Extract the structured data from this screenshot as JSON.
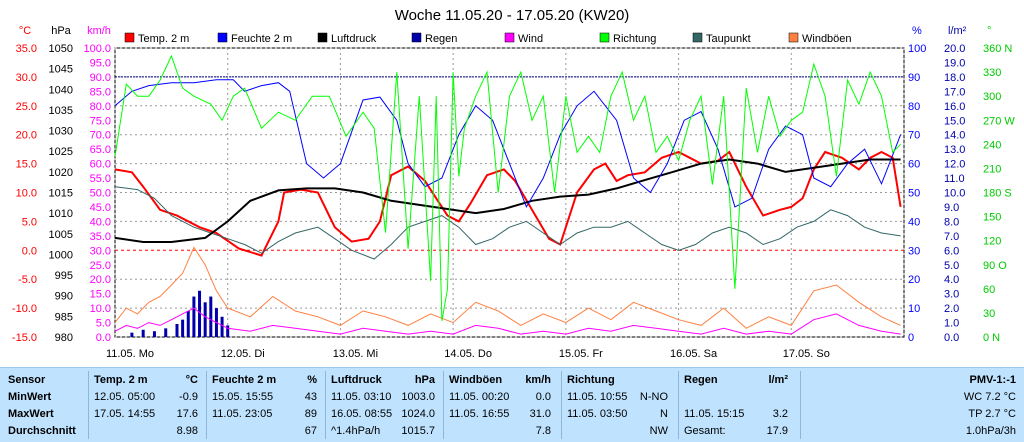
{
  "chart_data": {
    "type": "line",
    "title": "Woche 11.05.20 - 17.05.20 (KW20)",
    "x_ticks": [
      "11.05. Mo",
      "12.05. Di",
      "13.05. Mi",
      "14.05. Do",
      "15.05. Fr",
      "16.05. Sa",
      "17.05. So"
    ],
    "xlim": [
      0,
      7
    ],
    "grid": true,
    "legend_placement": "top",
    "axes": {
      "temp": {
        "unit": "°C",
        "range": [
          -15,
          35
        ],
        "ticks": [
          "35.0",
          "30.0",
          "25.0",
          "20.0",
          "15.0",
          "10.0",
          "5.0",
          "0.0",
          "-5.0",
          "-10.0",
          "-15.0"
        ],
        "color": "#ff0000"
      },
      "pressure": {
        "unit": "hPa",
        "range": [
          980,
          1050
        ],
        "ticks": [
          "1050",
          "1045",
          "1040",
          "1035",
          "1030",
          "1025",
          "1020",
          "1015",
          "1010",
          "1005",
          "1000",
          "995",
          "990",
          "985",
          "980"
        ],
        "color": "#000000"
      },
      "wind": {
        "unit": "km/h",
        "range": [
          0,
          100
        ],
        "ticks": [
          "100.0",
          "95.0",
          "90.0",
          "85.0",
          "80.0",
          "75.0",
          "70.0",
          "65.0",
          "60.0",
          "55.0",
          "50.0",
          "45.0",
          "40.0",
          "35.0",
          "30.0",
          "25.0",
          "20.0",
          "15.0",
          "10.0",
          "5.0",
          "0.0"
        ],
        "color": "#ff00ff"
      },
      "humidity": {
        "unit": "%",
        "range": [
          0,
          100
        ],
        "ticks": [
          "100",
          "90",
          "80",
          "70",
          "60",
          "50",
          "40",
          "30",
          "20",
          "10",
          "0"
        ],
        "color": "#0000ff"
      },
      "rain": {
        "unit": "l/m²",
        "range": [
          0,
          20
        ],
        "ticks": [
          "20.0",
          "19.0",
          "18.0",
          "17.0",
          "16.0",
          "15.0",
          "14.0",
          "13.0",
          "12.0",
          "11.0",
          "10.0",
          "9.0",
          "8.0",
          "7.0",
          "6.0",
          "5.0",
          "4.0",
          "3.0",
          "2.0",
          "1.0",
          "0.0"
        ],
        "color": "#0000aa"
      },
      "direction": {
        "unit": "°",
        "range": [
          0,
          360
        ],
        "ticks": [
          "360 N",
          "330",
          "300",
          "270 W",
          "240",
          "210",
          "180 S",
          "150",
          "120",
          "90 O",
          "60",
          "30",
          "0 N"
        ],
        "color": "#00cc00"
      }
    },
    "legend": [
      {
        "name": "Temp. 2 m",
        "color": "#ff0000"
      },
      {
        "name": "Feuchte 2 m",
        "color": "#0000ff"
      },
      {
        "name": "Luftdruck",
        "color": "#000000"
      },
      {
        "name": "Regen",
        "color": "#0000aa"
      },
      {
        "name": "Wind",
        "color": "#ff00ff"
      },
      {
        "name": "Richtung",
        "color": "#00ff00"
      },
      {
        "name": "Taupunkt",
        "color": "#336666"
      },
      {
        "name": "Windböen",
        "color": "#ff8040"
      }
    ],
    "series": [
      {
        "name": "Temp. 2 m",
        "axis": "temp",
        "color": "#ff0000",
        "width": 2,
        "x": [
          0,
          0.15,
          0.25,
          0.4,
          0.55,
          0.75,
          0.9,
          1.1,
          1.3,
          1.45,
          1.5,
          1.65,
          1.8,
          1.95,
          2.1,
          2.25,
          2.35,
          2.45,
          2.6,
          2.75,
          2.85,
          2.95,
          3.05,
          3.15,
          3.3,
          3.45,
          3.55,
          3.7,
          3.85,
          3.95,
          4.1,
          4.25,
          4.35,
          4.45,
          4.55,
          4.7,
          4.85,
          5.0,
          5.1,
          5.2,
          5.35,
          5.45,
          5.6,
          5.75,
          5.9,
          6.0,
          6.1,
          6.2,
          6.3,
          6.45,
          6.6,
          6.7,
          6.8,
          6.9,
          6.97
        ],
        "y": [
          14,
          13.5,
          11,
          7,
          6,
          4,
          3,
          0.3,
          -0.9,
          5,
          10,
          10.5,
          10,
          4,
          1.5,
          2,
          5,
          13,
          14.5,
          12,
          9,
          6,
          5,
          8,
          13,
          14,
          12,
          7,
          2,
          1,
          10,
          14,
          15,
          12,
          13,
          13.5,
          16,
          17,
          16,
          15,
          15.5,
          17,
          11,
          6,
          7,
          7.5,
          9,
          14,
          17,
          16,
          14,
          16,
          17,
          16,
          7.5
        ]
      },
      {
        "name": "Taupunkt",
        "axis": "temp",
        "color": "#336666",
        "width": 1,
        "x": [
          0,
          0.2,
          0.35,
          0.5,
          0.7,
          0.85,
          1.0,
          1.15,
          1.3,
          1.45,
          1.6,
          1.8,
          1.95,
          2.1,
          2.3,
          2.45,
          2.6,
          2.75,
          2.9,
          3.05,
          3.2,
          3.35,
          3.5,
          3.65,
          3.8,
          3.95,
          4.1,
          4.25,
          4.4,
          4.55,
          4.7,
          4.85,
          5.0,
          5.15,
          5.3,
          5.45,
          5.6,
          5.75,
          5.9,
          6.05,
          6.2,
          6.35,
          6.5,
          6.65,
          6.8,
          6.97
        ],
        "y": [
          11,
          10.5,
          9,
          6,
          4,
          3,
          2,
          1,
          -0.5,
          1.5,
          3,
          4,
          2,
          0,
          -1.5,
          1,
          4,
          5,
          6,
          4,
          1,
          2,
          4,
          5,
          3,
          1,
          3,
          4,
          4,
          5,
          3,
          1,
          0,
          1,
          3,
          4,
          3,
          1,
          2,
          4,
          5,
          7,
          6,
          4,
          3,
          2.5
        ]
      },
      {
        "name": "Luftdruck",
        "axis": "pressure",
        "color": "#000000",
        "width": 2,
        "x": [
          0,
          0.25,
          0.5,
          0.8,
          1.0,
          1.2,
          1.45,
          1.7,
          1.95,
          2.2,
          2.45,
          2.7,
          2.95,
          3.2,
          3.45,
          3.7,
          3.95,
          4.2,
          4.45,
          4.7,
          4.95,
          5.2,
          5.45,
          5.7,
          5.95,
          6.2,
          6.45,
          6.7,
          6.97
        ],
        "y": [
          1004,
          1003,
          1003,
          1004,
          1008,
          1013,
          1015.5,
          1016,
          1016,
          1015,
          1013,
          1012,
          1011,
          1010,
          1011,
          1013,
          1014,
          1014.5,
          1016,
          1018,
          1020,
          1022,
          1023,
          1022,
          1020,
          1021,
          1022,
          1023,
          1023
        ]
      },
      {
        "name": "Feuchte 2 m",
        "axis": "humidity",
        "color": "#0000ff",
        "width": 1,
        "x": [
          0,
          0.15,
          0.3,
          0.5,
          0.7,
          0.9,
          1.05,
          1.15,
          1.3,
          1.45,
          1.55,
          1.7,
          1.85,
          2.0,
          2.2,
          2.35,
          2.5,
          2.6,
          2.75,
          2.9,
          3.05,
          3.2,
          3.35,
          3.5,
          3.65,
          3.8,
          3.95,
          4.1,
          4.25,
          4.45,
          4.6,
          4.75,
          4.9,
          5.05,
          5.2,
          5.35,
          5.5,
          5.65,
          5.8,
          5.95,
          6.1,
          6.2,
          6.35,
          6.5,
          6.65,
          6.8,
          6.97
        ],
        "y": [
          80,
          85,
          87,
          88,
          88,
          89,
          89,
          85,
          87,
          88,
          85,
          60,
          55,
          60,
          82,
          83,
          75,
          60,
          52,
          55,
          70,
          80,
          75,
          60,
          45,
          55,
          70,
          80,
          85,
          75,
          55,
          50,
          60,
          75,
          78,
          65,
          45,
          48,
          65,
          73,
          70,
          55,
          52,
          60,
          65,
          53,
          70
        ]
      },
      {
        "name": "Wind",
        "axis": "wind",
        "color": "#ff00ff",
        "width": 1,
        "x": [
          0,
          0.1,
          0.2,
          0.3,
          0.4,
          0.5,
          0.6,
          0.7,
          0.8,
          0.9,
          1.0,
          1.2,
          1.4,
          1.6,
          1.8,
          2.0,
          2.2,
          2.4,
          2.6,
          2.8,
          3.0,
          3.2,
          3.4,
          3.6,
          3.8,
          4.0,
          4.2,
          4.4,
          4.6,
          4.8,
          5.0,
          5.2,
          5.4,
          5.6,
          5.8,
          6.0,
          6.2,
          6.4,
          6.6,
          6.8,
          6.97
        ],
        "y": [
          2,
          4,
          3,
          5,
          4,
          6,
          8,
          10,
          7,
          5,
          3,
          2,
          4,
          3,
          2,
          1,
          3,
          2,
          1,
          2,
          1,
          4,
          3,
          1,
          2,
          1,
          3,
          2,
          4,
          3,
          2,
          1,
          3,
          1,
          2,
          1,
          6,
          8,
          4,
          2,
          1
        ]
      },
      {
        "name": "Windböen",
        "axis": "wind",
        "color": "#ff8040",
        "width": 1,
        "x": [
          0,
          0.1,
          0.2,
          0.3,
          0.4,
          0.5,
          0.6,
          0.7,
          0.8,
          0.9,
          1.0,
          1.2,
          1.4,
          1.6,
          1.8,
          2.0,
          2.2,
          2.4,
          2.6,
          2.8,
          3.0,
          3.2,
          3.4,
          3.6,
          3.8,
          4.0,
          4.2,
          4.4,
          4.6,
          4.8,
          5.0,
          5.2,
          5.4,
          5.6,
          5.8,
          6.0,
          6.2,
          6.4,
          6.6,
          6.8,
          6.97
        ],
        "y": [
          5,
          10,
          8,
          12,
          14,
          18,
          22,
          31,
          25,
          16,
          10,
          7,
          14,
          9,
          7,
          4,
          9,
          7,
          4,
          8,
          5,
          12,
          9,
          4,
          8,
          5,
          10,
          6,
          12,
          9,
          6,
          4,
          10,
          3,
          7,
          4,
          16,
          18,
          12,
          7,
          4
        ]
      },
      {
        "name": "Richtung",
        "axis": "direction",
        "color": "#00ff00",
        "width": 1,
        "x": [
          0,
          0.1,
          0.2,
          0.3,
          0.4,
          0.5,
          0.6,
          0.7,
          0.85,
          0.95,
          1.05,
          1.15,
          1.3,
          1.45,
          1.6,
          1.75,
          1.9,
          2.05,
          2.2,
          2.3,
          2.4,
          2.5,
          2.6,
          2.7,
          2.8,
          2.85,
          2.9,
          2.95,
          3.0,
          3.05,
          3.1,
          3.2,
          3.3,
          3.4,
          3.5,
          3.6,
          3.7,
          3.8,
          3.9,
          4.0,
          4.1,
          4.2,
          4.3,
          4.4,
          4.5,
          4.6,
          4.7,
          4.8,
          4.9,
          5.0,
          5.1,
          5.2,
          5.3,
          5.4,
          5.5,
          5.6,
          5.7,
          5.8,
          5.9,
          6.0,
          6.1,
          6.2,
          6.3,
          6.4,
          6.5,
          6.6,
          6.7,
          6.8,
          6.9,
          6.97
        ],
        "y": [
          225,
          315,
          300,
          300,
          320,
          350,
          310,
          300,
          290,
          270,
          300,
          310,
          260,
          280,
          270,
          300,
          300,
          250,
          280,
          260,
          130,
          330,
          110,
          300,
          70,
          300,
          20,
          60,
          330,
          200,
          260,
          300,
          330,
          180,
          300,
          330,
          270,
          300,
          180,
          300,
          230,
          250,
          230,
          300,
          330,
          270,
          300,
          230,
          250,
          220,
          270,
          300,
          190,
          300,
          60,
          310,
          230,
          300,
          250,
          270,
          280,
          340,
          300,
          200,
          320,
          290,
          330,
          300,
          230,
          240
        ]
      }
    ],
    "rain_bars": {
      "axis": "rain",
      "color": "#0000aa",
      "x": [
        0.15,
        0.25,
        0.35,
        0.45,
        0.55,
        0.6,
        0.65,
        0.7,
        0.75,
        0.8,
        0.85,
        0.9,
        0.95,
        1.0
      ],
      "values": [
        0.3,
        0.5,
        0.4,
        0.6,
        0.9,
        1.2,
        1.8,
        2.8,
        3.2,
        2.4,
        2.8,
        2.0,
        1.4,
        0.8
      ]
    }
  },
  "stats": {
    "col1": {
      "header": "Sensor",
      "rows": [
        "MinWert",
        "MaxWert",
        "Durchschnitt"
      ]
    },
    "temp": {
      "header": "Temp. 2 m",
      "unit": "°C",
      "times": [
        "12.05. 05:00",
        "17.05. 14:55",
        ""
      ],
      "values": [
        "-0.9",
        "17.6",
        "8.98"
      ]
    },
    "hum": {
      "header": "Feuchte 2 m",
      "unit": "%",
      "times": [
        "15.05. 15:55",
        "11.05. 23:05",
        ""
      ],
      "values": [
        "43",
        "89",
        "67"
      ]
    },
    "press": {
      "header": "Luftdruck",
      "unit": "hPa",
      "times": [
        "11.05. 03:10",
        "16.05. 08:55",
        "^1.4hPa/h"
      ],
      "values": [
        "1003.0",
        "1024.0",
        "1015.7"
      ]
    },
    "gust": {
      "header": "Windböen",
      "unit": "km/h",
      "times": [
        "11.05. 00:20",
        "11.05. 16:55",
        ""
      ],
      "values": [
        "0.0",
        "31.0",
        "7.8"
      ]
    },
    "dir": {
      "header": "Richtung",
      "unit": "",
      "times": [
        "11.05. 10:55",
        "11.05. 03:50",
        ""
      ],
      "values": [
        "N-NO",
        "N",
        "NW"
      ]
    },
    "rain": {
      "header": "Regen",
      "unit": "l/m²",
      "times": [
        "",
        "11.05. 15:15",
        "Gesamt:"
      ],
      "values": [
        "",
        "3.2",
        "17.9"
      ]
    },
    "pmv": {
      "header": "PMV-1:-1",
      "lines": [
        "WC 7.2 °C",
        "TP 2.7 °C",
        "1.0hPa/3h"
      ]
    }
  }
}
